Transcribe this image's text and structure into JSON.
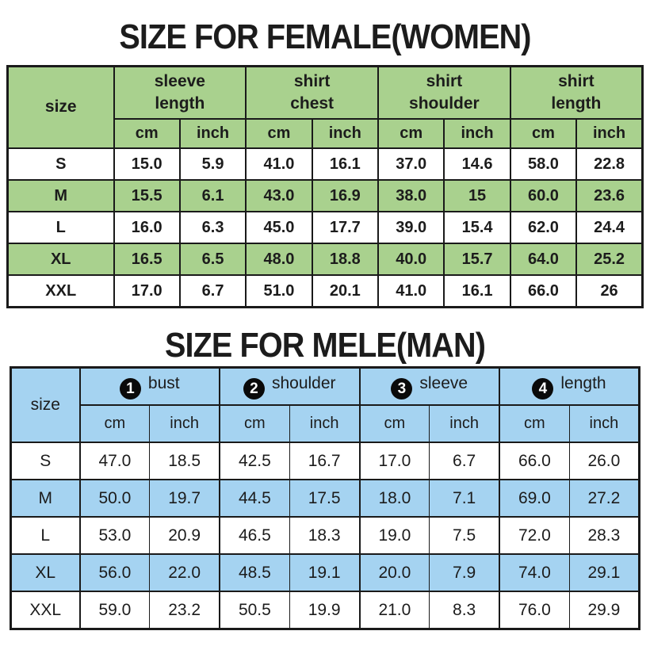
{
  "colors": {
    "female_accent": "#a9d18e",
    "male_accent": "#a5d3f1",
    "border": "#1a1a1a",
    "text": "#1c1c1c"
  },
  "female": {
    "title": "SIZE FOR FEMALE(WOMEN)",
    "size_header": "size",
    "units": [
      "cm",
      "inch"
    ],
    "groups": [
      {
        "line1": "sleeve",
        "line2": "length"
      },
      {
        "line1": "shirt",
        "line2": "chest"
      },
      {
        "line1": "shirt",
        "line2": "shoulder"
      },
      {
        "line1": "shirt",
        "line2": "length"
      }
    ],
    "rows": [
      {
        "size": "S",
        "values": [
          "15.0",
          "5.9",
          "41.0",
          "16.1",
          "37.0",
          "14.6",
          "58.0",
          "22.8"
        ]
      },
      {
        "size": "M",
        "values": [
          "15.5",
          "6.1",
          "43.0",
          "16.9",
          "38.0",
          "15",
          "60.0",
          "23.6"
        ]
      },
      {
        "size": "L",
        "values": [
          "16.0",
          "6.3",
          "45.0",
          "17.7",
          "39.0",
          "15.4",
          "62.0",
          "24.4"
        ]
      },
      {
        "size": "XL",
        "values": [
          "16.5",
          "6.5",
          "48.0",
          "18.8",
          "40.0",
          "15.7",
          "64.0",
          "25.2"
        ]
      },
      {
        "size": "XXL",
        "values": [
          "17.0",
          "6.7",
          "51.0",
          "20.1",
          "41.0",
          "16.1",
          "66.0",
          "26"
        ]
      }
    ]
  },
  "male": {
    "title": "SIZE FOR MELE(MAN)",
    "size_header": "size",
    "units": [
      "cm",
      "inch"
    ],
    "groups": [
      {
        "num": "1",
        "label": "bust"
      },
      {
        "num": "2",
        "label": "shoulder"
      },
      {
        "num": "3",
        "label": "sleeve"
      },
      {
        "num": "4",
        "label": "length"
      }
    ],
    "rows": [
      {
        "size": "S",
        "values": [
          "47.0",
          "18.5",
          "42.5",
          "16.7",
          "17.0",
          "6.7",
          "66.0",
          "26.0"
        ]
      },
      {
        "size": "M",
        "values": [
          "50.0",
          "19.7",
          "44.5",
          "17.5",
          "18.0",
          "7.1",
          "69.0",
          "27.2"
        ]
      },
      {
        "size": "L",
        "values": [
          "53.0",
          "20.9",
          "46.5",
          "18.3",
          "19.0",
          "7.5",
          "72.0",
          "28.3"
        ]
      },
      {
        "size": "XL",
        "values": [
          "56.0",
          "22.0",
          "48.5",
          "19.1",
          "20.0",
          "7.9",
          "74.0",
          "29.1"
        ]
      },
      {
        "size": "XXL",
        "values": [
          "59.0",
          "23.2",
          "50.5",
          "19.9",
          "21.0",
          "8.3",
          "76.0",
          "29.9"
        ]
      }
    ]
  }
}
